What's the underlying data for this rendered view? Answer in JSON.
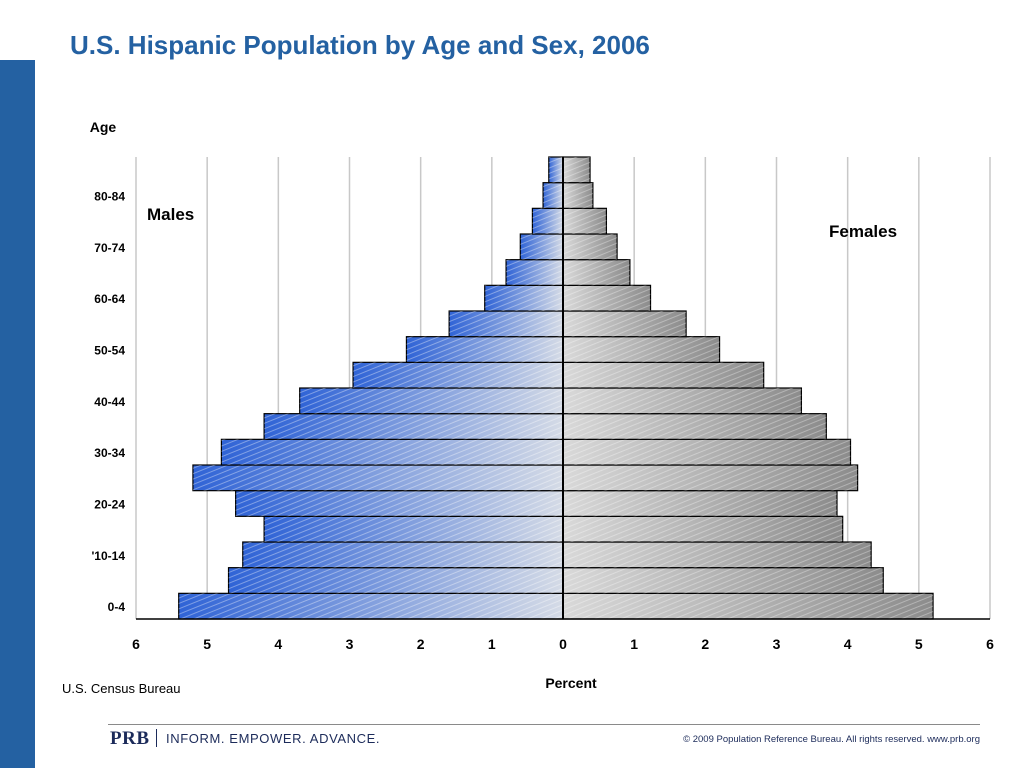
{
  "slide": {
    "title": "U.S. Hispanic Population by Age and Sex, 2006",
    "source": "U.S. Census Bureau"
  },
  "footer": {
    "logo": "PRB",
    "tagline": "INFORM. EMPOWER. ADVANCE.",
    "copyright": "© 2009 Population Reference Bureau. All rights reserved. www.prb.org"
  },
  "colors": {
    "accent": "#2461a2",
    "males": "#2f63d6",
    "females": "#8c8c8c"
  },
  "chart_data": {
    "type": "bar",
    "orientation": "horizontal",
    "subtype": "population-pyramid",
    "ylabel": "Age",
    "xlabel": "Percent",
    "xlim": [
      -6,
      6
    ],
    "x_ticks": [
      -6,
      -5,
      -4,
      -3,
      -2,
      -1,
      0,
      1,
      2,
      3,
      4,
      5,
      6
    ],
    "x_tick_labels": [
      "6",
      "5",
      "4",
      "3",
      "2",
      "1",
      "0",
      "1",
      "2",
      "3",
      "4",
      "5",
      "6"
    ],
    "grid": true,
    "y_tick_labels": [
      "0-4",
      "'10-14",
      "20-24",
      "30-34",
      "40-44",
      "50-54",
      "60-64",
      "70-74",
      "80-84"
    ],
    "y_tick_groups": [
      0,
      2,
      4,
      6,
      8,
      10,
      12,
      14,
      16
    ],
    "group_count": 18,
    "series": [
      {
        "name": "Males",
        "values": [
          5.4,
          4.7,
          4.5,
          4.2,
          4.6,
          5.2,
          4.8,
          4.2,
          3.7,
          2.95,
          2.2,
          1.6,
          1.1,
          0.8,
          0.6,
          0.43,
          0.28,
          0.2
        ]
      },
      {
        "name": "Females",
        "values": [
          5.2,
          4.5,
          4.33,
          3.93,
          3.85,
          4.14,
          4.04,
          3.7,
          3.35,
          2.82,
          2.2,
          1.73,
          1.23,
          0.94,
          0.76,
          0.61,
          0.42,
          0.38
        ]
      }
    ]
  }
}
